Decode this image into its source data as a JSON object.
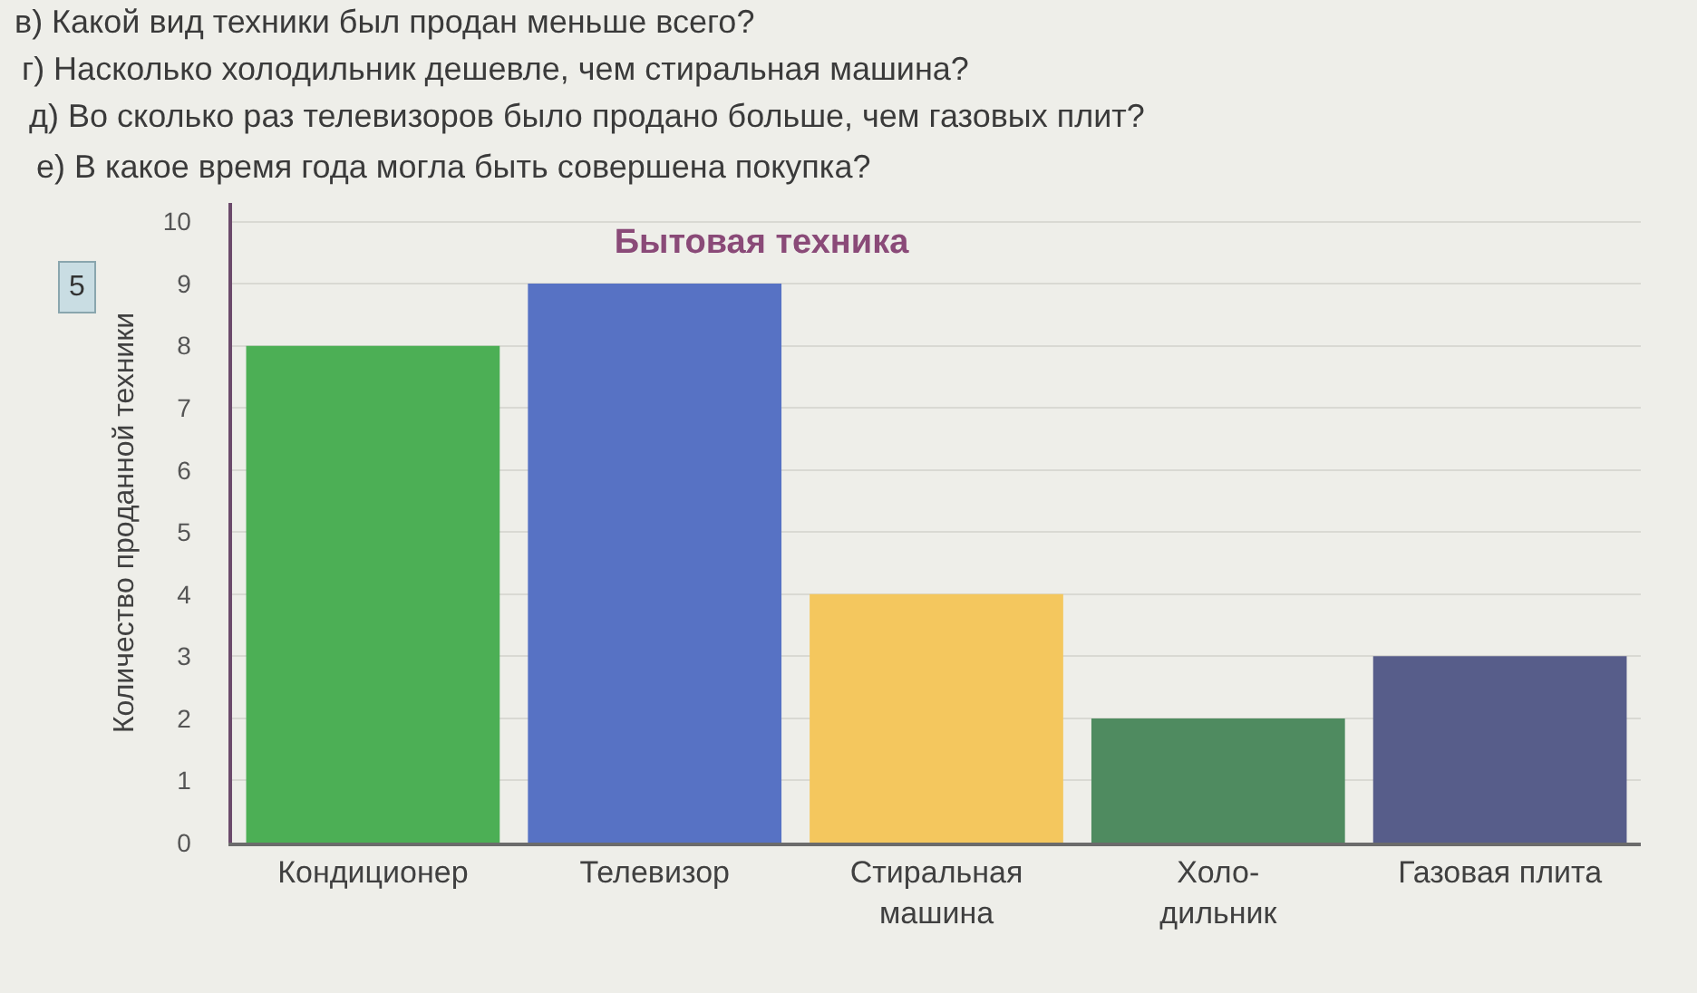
{
  "chart_data": {
    "type": "bar",
    "title": "Бытовая техника",
    "ylabel": "Количество проданной техники",
    "categories": [
      "Кондиционер",
      "Телевизор",
      "Стиральная\nмашина",
      "Холо-\nдильник",
      "Газовая плита"
    ],
    "values": [
      8,
      9,
      4,
      2,
      3
    ],
    "colors": [
      "#4caf55",
      "#5772c4",
      "#f4c75e",
      "#4f8b60",
      "#575d8a"
    ],
    "ylim": [
      0,
      10.3
    ],
    "yticks": [
      0,
      1,
      2,
      3,
      4,
      5,
      6,
      7,
      8,
      9,
      10
    ],
    "grid": "y",
    "annotations": [
      "в) Какой вид техники был продан меньше всего?",
      "г) Насколько холодильник дешевле, чем стиральная машина?",
      "д) Во сколько раз телевизоров было продано больше, чем газовых плит?",
      "е) В какое время года могла быть совершена покупка?",
      "5"
    ]
  }
}
